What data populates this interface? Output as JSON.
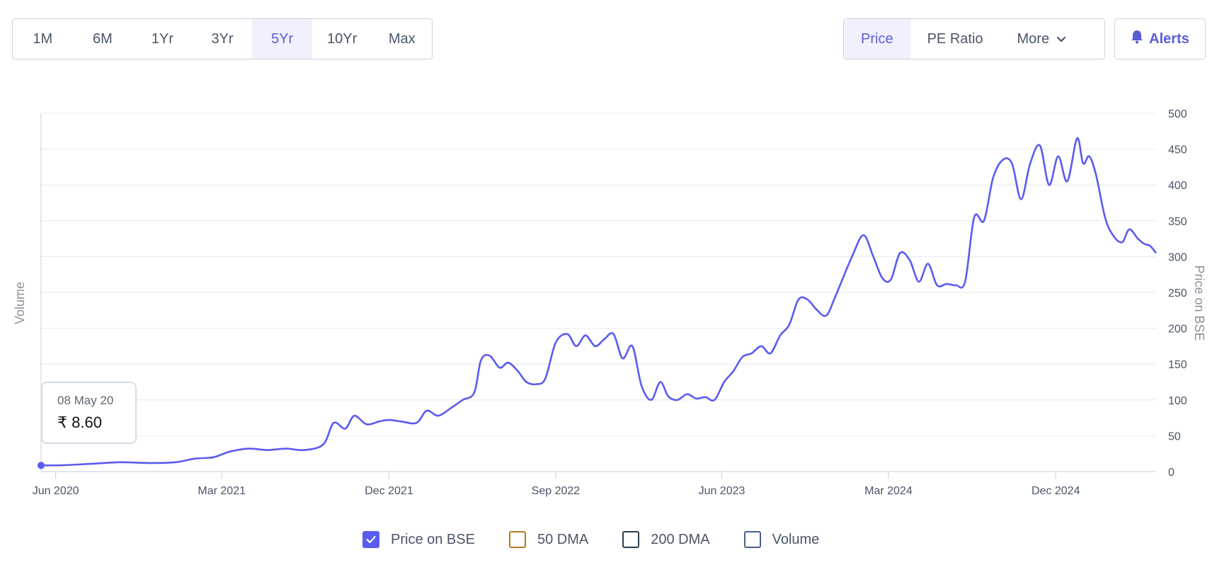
{
  "range_buttons": [
    {
      "label": "1M",
      "active": false
    },
    {
      "label": "6M",
      "active": false
    },
    {
      "label": "1Yr",
      "active": false
    },
    {
      "label": "3Yr",
      "active": false
    },
    {
      "label": "5Yr",
      "active": true
    },
    {
      "label": "10Yr",
      "active": false
    },
    {
      "label": "Max",
      "active": false
    }
  ],
  "metric_buttons": {
    "price": "Price",
    "pe_ratio": "PE Ratio",
    "more": "More"
  },
  "alerts": {
    "label": "Alerts",
    "icon": "bell-icon"
  },
  "colors": {
    "line": "#5b5bf0",
    "accent": "#5b5bd6",
    "ma50": "#b7791f",
    "ma200": "#2c3e50",
    "volume": "#4a5f8a",
    "grid": "#e6e9ee"
  },
  "tooltip": {
    "date": "08 May 20",
    "value": "₹ 8.60"
  },
  "legend": [
    {
      "label": "Price on BSE",
      "checked": true,
      "color": "#5b5bf0"
    },
    {
      "label": "50 DMA",
      "checked": false,
      "color": "#b7791f"
    },
    {
      "label": "200 DMA",
      "checked": false,
      "color": "#2c3e50"
    },
    {
      "label": "Volume",
      "checked": false,
      "color": "#4a5f8a"
    }
  ],
  "chart_data": {
    "type": "line",
    "title": "",
    "xlabel": "",
    "ylabel_left": "Volume",
    "ylabel_right": "Price on BSE",
    "ylim": [
      0,
      500
    ],
    "xlim": [
      "2020-05-08",
      "2025-05-15"
    ],
    "y_ticks": [
      0,
      50,
      100,
      150,
      200,
      250,
      300,
      350,
      400,
      450,
      500
    ],
    "x_ticks": [
      {
        "label": "Jun 2020",
        "date": "2020-06-01"
      },
      {
        "label": "Mar 2021",
        "date": "2021-03-01"
      },
      {
        "label": "Dec 2021",
        "date": "2021-12-01"
      },
      {
        "label": "Sep 2022",
        "date": "2022-09-01"
      },
      {
        "label": "Jun 2023",
        "date": "2023-06-01"
      },
      {
        "label": "Mar 2024",
        "date": "2024-03-01"
      },
      {
        "label": "Dec 2024",
        "date": "2024-12-01"
      }
    ],
    "grid": true,
    "series": [
      {
        "name": "Price on BSE",
        "points": [
          [
            "2020-05-08",
            8.6
          ],
          [
            "2020-06-15",
            9
          ],
          [
            "2020-08-01",
            11
          ],
          [
            "2020-09-15",
            13
          ],
          [
            "2020-11-01",
            12
          ],
          [
            "2020-12-15",
            13
          ],
          [
            "2021-01-15",
            18
          ],
          [
            "2021-02-15",
            20
          ],
          [
            "2021-03-15",
            28
          ],
          [
            "2021-04-15",
            32
          ],
          [
            "2021-05-15",
            30
          ],
          [
            "2021-06-15",
            32
          ],
          [
            "2021-07-15",
            30
          ],
          [
            "2021-08-15",
            38
          ],
          [
            "2021-09-01",
            68
          ],
          [
            "2021-09-20",
            60
          ],
          [
            "2021-10-05",
            78
          ],
          [
            "2021-10-25",
            66
          ],
          [
            "2021-11-15",
            70
          ],
          [
            "2021-12-01",
            72
          ],
          [
            "2021-12-20",
            70
          ],
          [
            "2022-01-15",
            68
          ],
          [
            "2022-02-01",
            85
          ],
          [
            "2022-02-20",
            78
          ],
          [
            "2022-03-15",
            90
          ],
          [
            "2022-04-01",
            100
          ],
          [
            "2022-04-20",
            110
          ],
          [
            "2022-05-01",
            155
          ],
          [
            "2022-05-15",
            162
          ],
          [
            "2022-06-01",
            145
          ],
          [
            "2022-06-15",
            152
          ],
          [
            "2022-07-01",
            140
          ],
          [
            "2022-07-15",
            125
          ],
          [
            "2022-08-01",
            122
          ],
          [
            "2022-08-15",
            130
          ],
          [
            "2022-09-01",
            180
          ],
          [
            "2022-09-20",
            192
          ],
          [
            "2022-10-05",
            175
          ],
          [
            "2022-10-20",
            190
          ],
          [
            "2022-11-05",
            175
          ],
          [
            "2022-11-20",
            185
          ],
          [
            "2022-12-05",
            192
          ],
          [
            "2022-12-20",
            158
          ],
          [
            "2023-01-05",
            175
          ],
          [
            "2023-01-20",
            120
          ],
          [
            "2023-02-05",
            100
          ],
          [
            "2023-02-20",
            125
          ],
          [
            "2023-03-05",
            105
          ],
          [
            "2023-03-20",
            100
          ],
          [
            "2023-04-05",
            108
          ],
          [
            "2023-04-20",
            102
          ],
          [
            "2023-05-05",
            104
          ],
          [
            "2023-05-20",
            100
          ],
          [
            "2023-06-05",
            125
          ],
          [
            "2023-06-20",
            140
          ],
          [
            "2023-07-05",
            160
          ],
          [
            "2023-07-20",
            165
          ],
          [
            "2023-08-05",
            175
          ],
          [
            "2023-08-20",
            165
          ],
          [
            "2023-09-05",
            190
          ],
          [
            "2023-09-20",
            205
          ],
          [
            "2023-10-05",
            240
          ],
          [
            "2023-10-20",
            240
          ],
          [
            "2023-11-05",
            225
          ],
          [
            "2023-11-20",
            218
          ],
          [
            "2023-12-05",
            245
          ],
          [
            "2024-01-01",
            300
          ],
          [
            "2024-01-20",
            330
          ],
          [
            "2024-02-05",
            300
          ],
          [
            "2024-02-20",
            270
          ],
          [
            "2024-03-05",
            268
          ],
          [
            "2024-03-20",
            305
          ],
          [
            "2024-04-05",
            295
          ],
          [
            "2024-04-20",
            265
          ],
          [
            "2024-05-05",
            290
          ],
          [
            "2024-05-20",
            260
          ],
          [
            "2024-06-05",
            262
          ],
          [
            "2024-06-20",
            260
          ],
          [
            "2024-07-05",
            265
          ],
          [
            "2024-07-20",
            355
          ],
          [
            "2024-08-05",
            350
          ],
          [
            "2024-08-20",
            410
          ],
          [
            "2024-09-05",
            435
          ],
          [
            "2024-09-20",
            430
          ],
          [
            "2024-10-05",
            380
          ],
          [
            "2024-10-20",
            430
          ],
          [
            "2024-11-05",
            455
          ],
          [
            "2024-11-20",
            400
          ],
          [
            "2024-12-05",
            440
          ],
          [
            "2024-12-20",
            405
          ],
          [
            "2025-01-05",
            465
          ],
          [
            "2025-01-15",
            430
          ],
          [
            "2025-01-25",
            440
          ],
          [
            "2025-02-05",
            415
          ],
          [
            "2025-02-20",
            355
          ],
          [
            "2025-03-05",
            330
          ],
          [
            "2025-03-20",
            320
          ],
          [
            "2025-04-01",
            338
          ],
          [
            "2025-04-15",
            325
          ],
          [
            "2025-04-25",
            318
          ],
          [
            "2025-05-05",
            315
          ],
          [
            "2025-05-15",
            305
          ]
        ]
      }
    ]
  }
}
